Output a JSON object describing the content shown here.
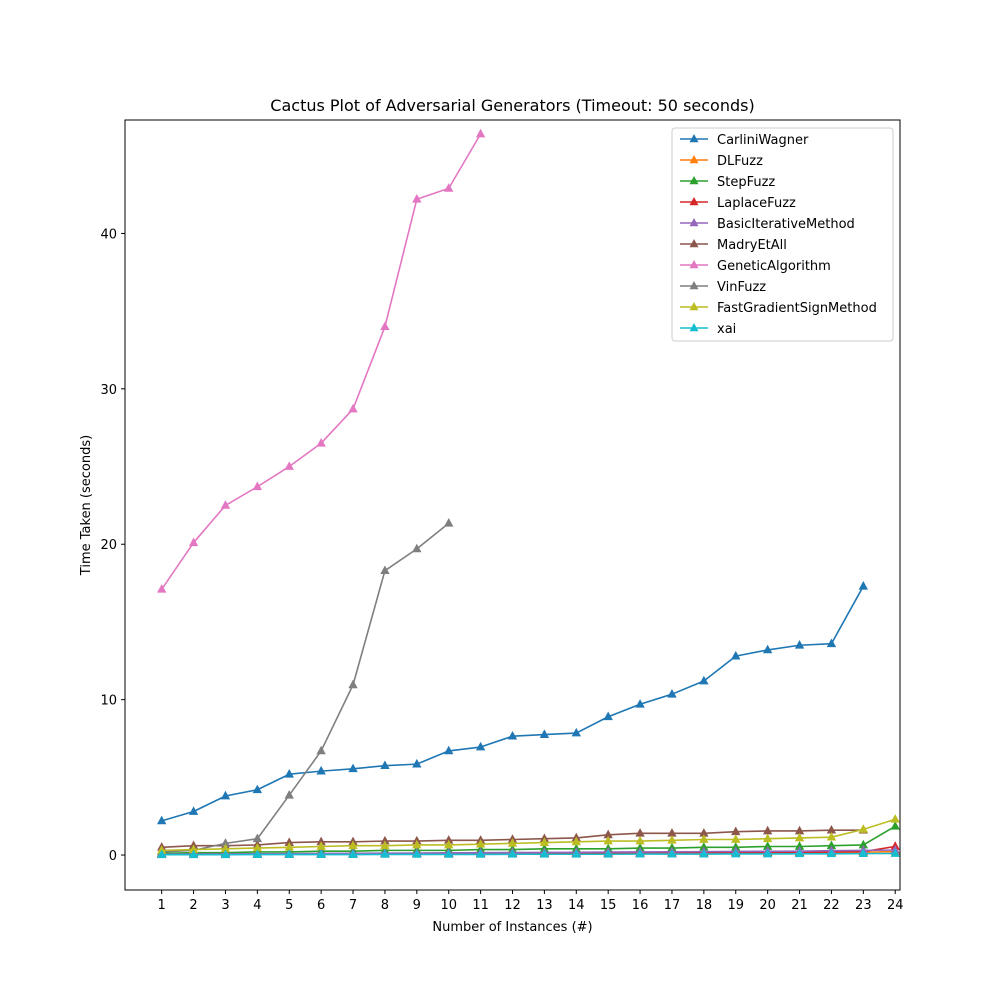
{
  "chart_data": {
    "type": "line",
    "title": "Cactus Plot of Adversarial Generators (Timeout: 50 seconds)",
    "xlabel": "Number of Instances (#)",
    "ylabel": "Time Taken (seconds)",
    "xlim": [
      -0.15,
      24.15
    ],
    "ylim": [
      -2.25,
      47.3
    ],
    "xticks": [
      1,
      2,
      3,
      4,
      5,
      6,
      7,
      8,
      9,
      10,
      11,
      12,
      13,
      14,
      15,
      16,
      17,
      18,
      19,
      20,
      21,
      22,
      23,
      24
    ],
    "yticks": [
      0,
      10,
      20,
      30,
      40
    ],
    "grid": false,
    "legend_position": "top-right",
    "marker": "triangle",
    "series": [
      {
        "name": "CarliniWagner",
        "color": "#1f77b4",
        "x": [
          1,
          2,
          3,
          4,
          5,
          6,
          7,
          8,
          9,
          10,
          11,
          12,
          13,
          14,
          15,
          16,
          17,
          18,
          19,
          20,
          21,
          22,
          23
        ],
        "y": [
          2.2,
          2.8,
          3.8,
          4.2,
          5.2,
          5.4,
          5.55,
          5.75,
          5.85,
          6.7,
          6.95,
          7.65,
          7.75,
          7.85,
          8.9,
          9.7,
          10.35,
          11.2,
          12.8,
          13.2,
          13.5,
          13.6,
          17.3
        ]
      },
      {
        "name": "DLFuzz",
        "color": "#ff7f0e",
        "x": [
          1,
          2,
          3,
          4,
          5,
          6,
          7,
          8,
          9,
          10,
          11,
          12,
          13,
          14,
          15,
          16,
          17,
          18,
          19,
          20,
          21,
          22,
          23,
          24
        ],
        "y": [
          0.05,
          0.05,
          0.05,
          0.06,
          0.06,
          0.07,
          0.07,
          0.08,
          0.08,
          0.09,
          0.09,
          0.1,
          0.1,
          0.1,
          0.11,
          0.11,
          0.12,
          0.12,
          0.13,
          0.14,
          0.15,
          0.16,
          0.18,
          0.22
        ]
      },
      {
        "name": "StepFuzz",
        "color": "#2ca02c",
        "x": [
          1,
          2,
          3,
          4,
          5,
          6,
          7,
          8,
          9,
          10,
          11,
          12,
          13,
          14,
          15,
          16,
          17,
          18,
          19,
          20,
          21,
          22,
          23,
          24
        ],
        "y": [
          0.1,
          0.15,
          0.15,
          0.2,
          0.2,
          0.25,
          0.25,
          0.3,
          0.3,
          0.3,
          0.35,
          0.35,
          0.4,
          0.4,
          0.4,
          0.45,
          0.45,
          0.5,
          0.5,
          0.55,
          0.55,
          0.6,
          0.65,
          1.85
        ]
      },
      {
        "name": "LaplaceFuzz",
        "color": "#d62728",
        "x": [
          1,
          2,
          3,
          4,
          5,
          6,
          7,
          8,
          9,
          10,
          11,
          12,
          13,
          14,
          15,
          16,
          17,
          18,
          19,
          20,
          21,
          22,
          23,
          24
        ],
        "y": [
          0.05,
          0.05,
          0.06,
          0.06,
          0.07,
          0.07,
          0.08,
          0.08,
          0.09,
          0.09,
          0.1,
          0.1,
          0.11,
          0.11,
          0.12,
          0.12,
          0.13,
          0.14,
          0.15,
          0.16,
          0.17,
          0.2,
          0.22,
          0.55
        ]
      },
      {
        "name": "BasicIterativeMethod",
        "color": "#9467bd",
        "x": [
          1,
          2,
          3,
          4,
          5,
          6,
          7,
          8,
          9,
          10,
          11,
          12,
          13,
          14,
          15,
          16,
          17,
          18,
          19,
          20,
          21,
          22,
          23,
          24
        ],
        "y": [
          0.05,
          0.06,
          0.07,
          0.08,
          0.09,
          0.1,
          0.11,
          0.12,
          0.13,
          0.14,
          0.15,
          0.16,
          0.17,
          0.18,
          0.19,
          0.2,
          0.21,
          0.22,
          0.23,
          0.24,
          0.25,
          0.28,
          0.3,
          0.32
        ]
      },
      {
        "name": "MadryEtAll",
        "color": "#8c564b",
        "x": [
          1,
          2,
          3,
          4,
          5,
          6,
          7,
          8,
          9,
          10,
          11,
          12,
          13,
          14,
          15,
          16,
          17,
          18,
          19,
          20,
          21,
          22,
          23
        ],
        "y": [
          0.5,
          0.6,
          0.6,
          0.65,
          0.8,
          0.85,
          0.85,
          0.9,
          0.9,
          0.95,
          0.95,
          1.0,
          1.05,
          1.1,
          1.3,
          1.4,
          1.4,
          1.4,
          1.5,
          1.55,
          1.55,
          1.6,
          1.6
        ]
      },
      {
        "name": "GeneticAlgorithm",
        "color": "#e377c2",
        "x": [
          1,
          2,
          3,
          4,
          5,
          6,
          7,
          8,
          9,
          10,
          11
        ],
        "y": [
          17.1,
          20.1,
          22.5,
          23.7,
          25.0,
          26.5,
          28.7,
          34.0,
          42.2,
          42.9,
          46.4
        ]
      },
      {
        "name": "VinFuzz",
        "color": "#7f7f7f",
        "x": [
          1,
          2,
          3,
          4,
          5,
          6,
          7,
          8,
          9,
          10
        ],
        "y": [
          0.2,
          0.3,
          0.75,
          1.05,
          3.85,
          6.7,
          10.95,
          18.3,
          19.7,
          21.35
        ]
      },
      {
        "name": "FastGradientSignMethod",
        "color": "#bcbd22",
        "x": [
          1,
          2,
          3,
          4,
          5,
          6,
          7,
          8,
          9,
          10,
          11,
          12,
          13,
          14,
          15,
          16,
          17,
          18,
          19,
          20,
          21,
          22,
          23,
          24
        ],
        "y": [
          0.3,
          0.35,
          0.4,
          0.45,
          0.5,
          0.55,
          0.6,
          0.6,
          0.65,
          0.65,
          0.7,
          0.75,
          0.8,
          0.85,
          0.9,
          0.9,
          0.95,
          1.0,
          1.0,
          1.05,
          1.1,
          1.15,
          1.65,
          2.3
        ]
      },
      {
        "name": "xai",
        "color": "#17becf",
        "x": [
          1,
          2,
          3,
          4,
          5,
          6,
          7,
          8,
          9,
          10,
          11,
          12,
          13,
          14,
          15,
          16,
          17,
          18,
          19,
          20,
          21,
          22,
          23,
          24
        ],
        "y": [
          0.02,
          0.02,
          0.02,
          0.03,
          0.03,
          0.03,
          0.03,
          0.04,
          0.04,
          0.04,
          0.04,
          0.05,
          0.05,
          0.05,
          0.05,
          0.06,
          0.06,
          0.06,
          0.07,
          0.07,
          0.08,
          0.08,
          0.09,
          0.1
        ]
      }
    ]
  }
}
